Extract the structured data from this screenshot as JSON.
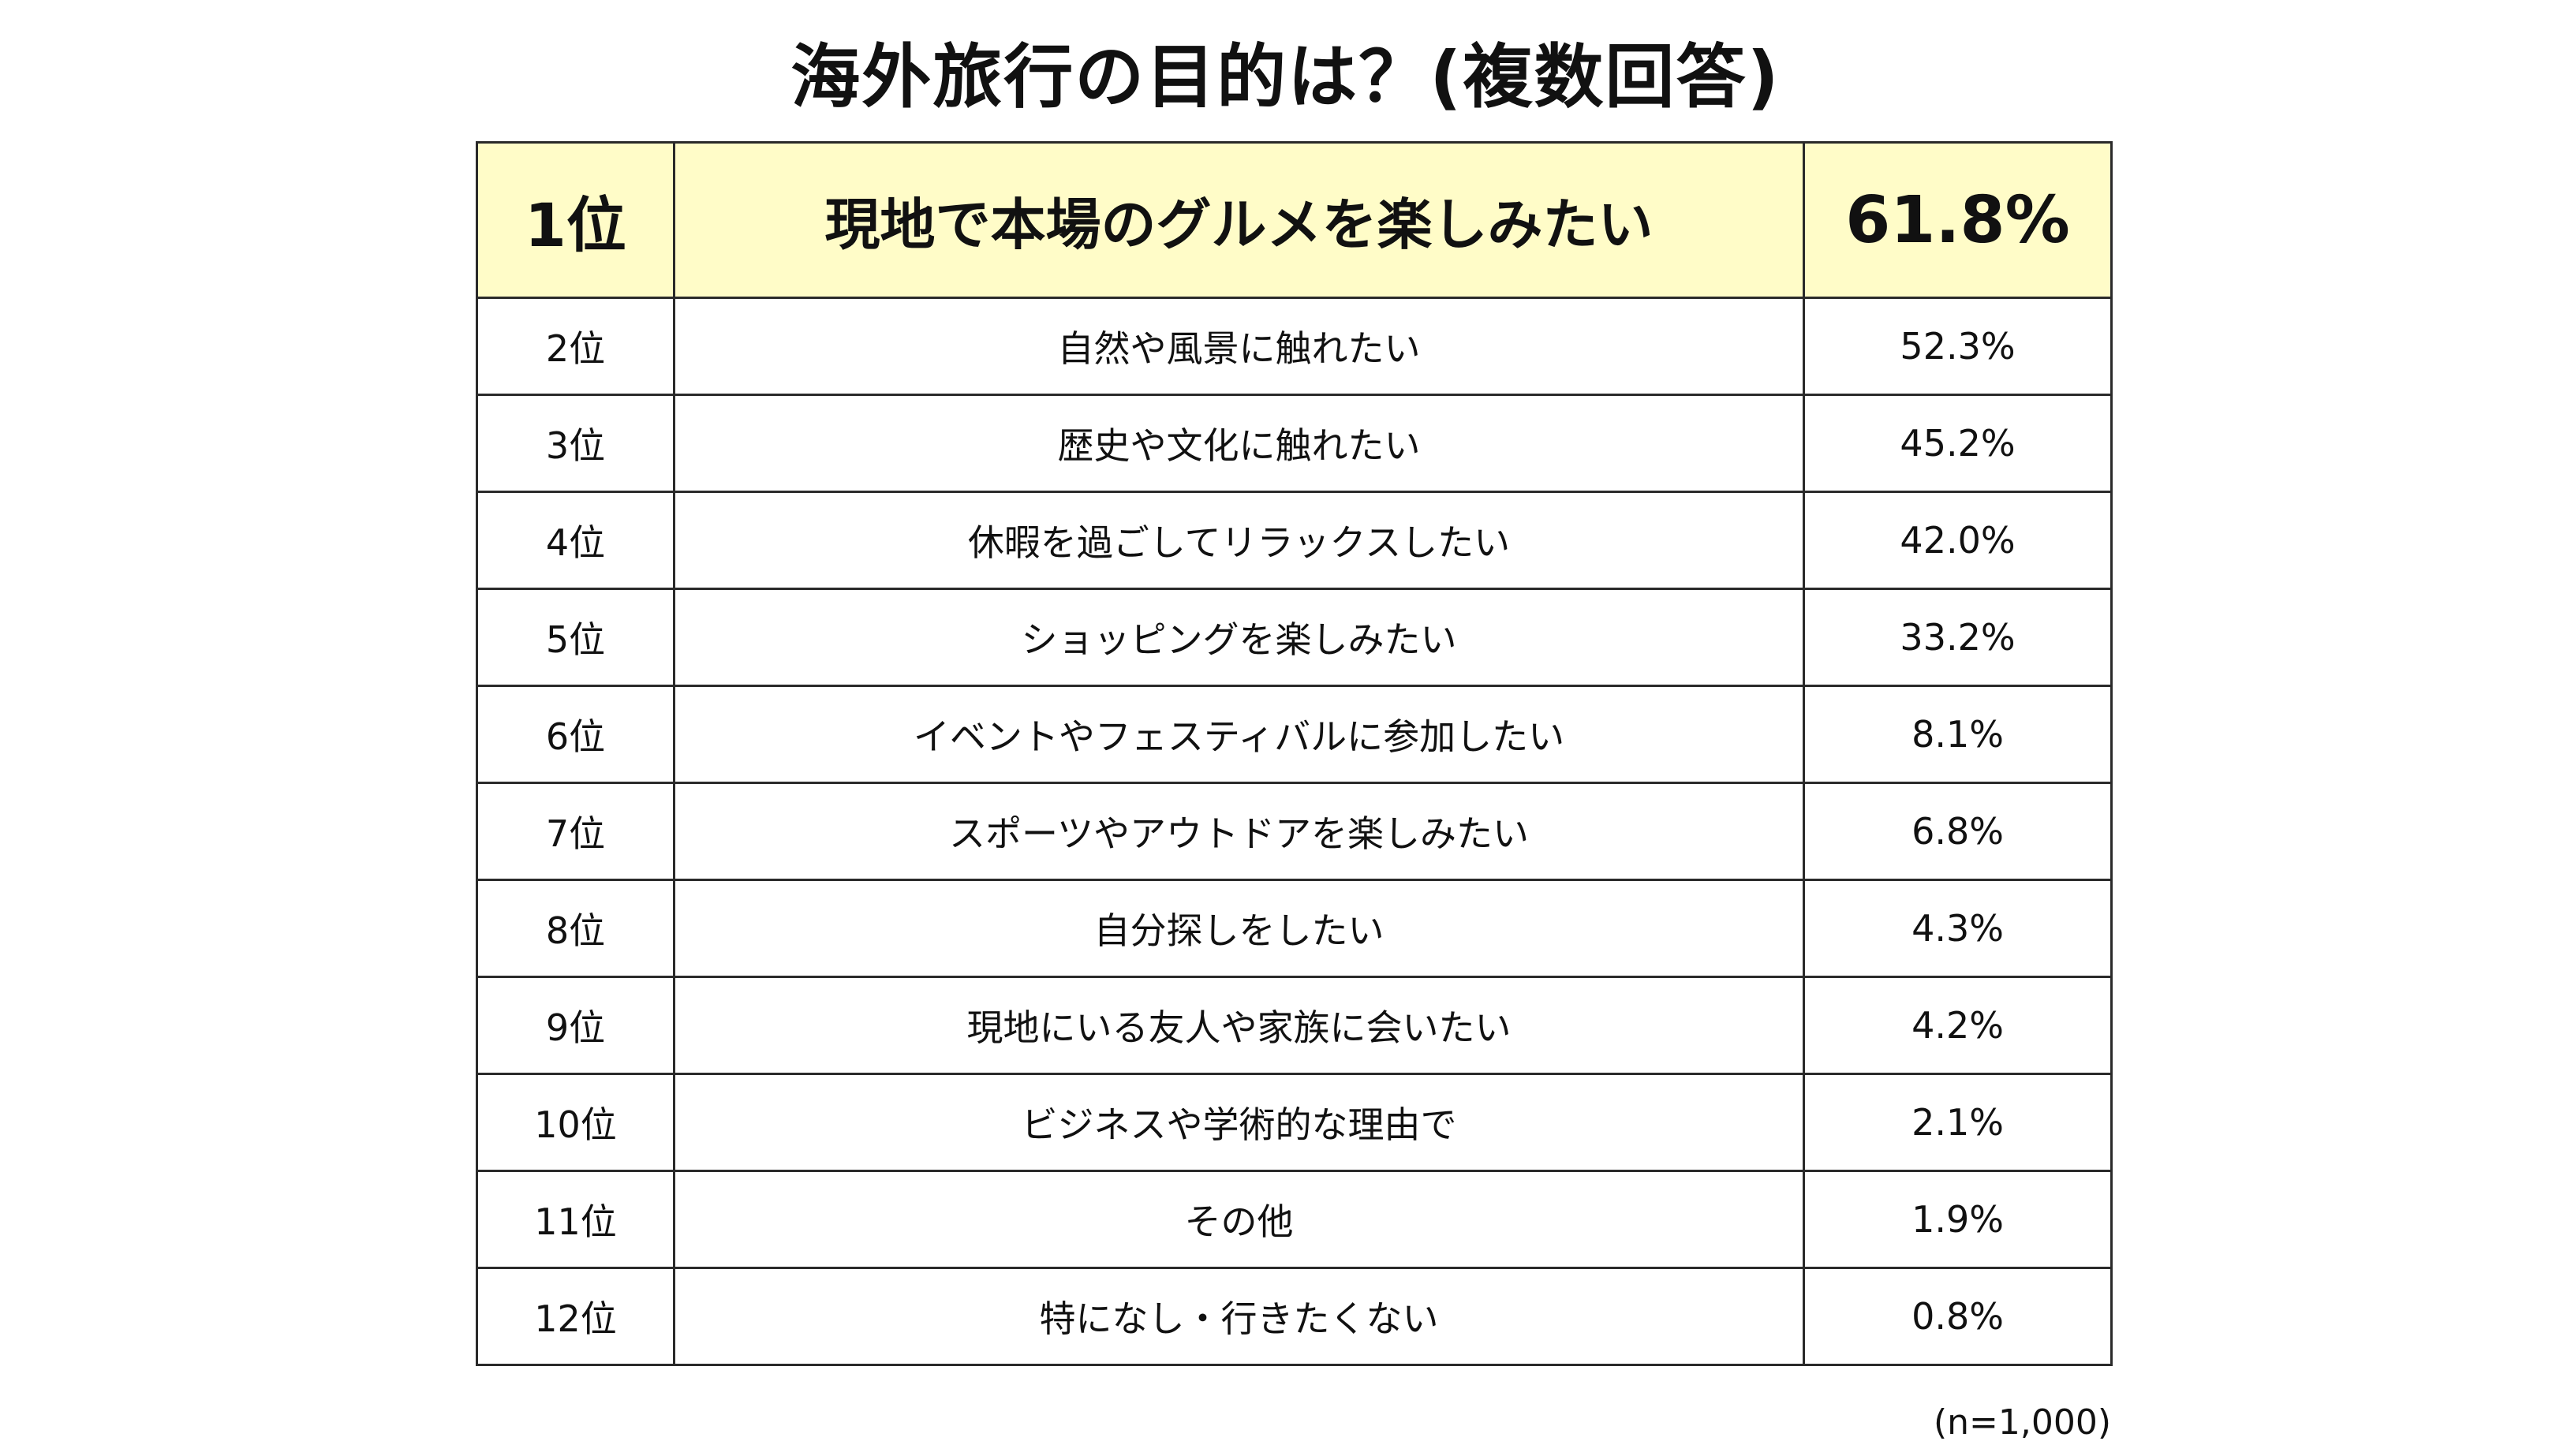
{
  "title": "海外旅行の目的は？(複数回答)",
  "chart_data": {
    "type": "table",
    "title": "海外旅行の目的は？(複数回答)",
    "rows": [
      {
        "rank": "1位",
        "item": "現地で本場のグルメを楽しみたい",
        "percent": "61.8%",
        "value": 61.8
      },
      {
        "rank": "2位",
        "item": "自然や風景に触れたい",
        "percent": "52.3%",
        "value": 52.3
      },
      {
        "rank": "3位",
        "item": "歴史や文化に触れたい",
        "percent": "45.2%",
        "value": 45.2
      },
      {
        "rank": "4位",
        "item": "休暇を過ごしてリラックスしたい",
        "percent": "42.0%",
        "value": 42.0
      },
      {
        "rank": "5位",
        "item": "ショッピングを楽しみたい",
        "percent": "33.2%",
        "value": 33.2
      },
      {
        "rank": "6位",
        "item": "イベントやフェスティバルに参加したい",
        "percent": "8.1%",
        "value": 8.1
      },
      {
        "rank": "7位",
        "item": "スポーツやアウトドアを楽しみたい",
        "percent": "6.8%",
        "value": 6.8
      },
      {
        "rank": "8位",
        "item": "自分探しをしたい",
        "percent": "4.3%",
        "value": 4.3
      },
      {
        "rank": "9位",
        "item": "現地にいる友人や家族に会いたい",
        "percent": "4.2%",
        "value": 4.2
      },
      {
        "rank": "10位",
        "item": "ビジネスや学術的な理由で",
        "percent": "2.1%",
        "value": 2.1
      },
      {
        "rank": "11位",
        "item": "その他",
        "percent": "1.9%",
        "value": 1.9
      },
      {
        "rank": "12位",
        "item": "特になし・行きたくない",
        "percent": "0.8%",
        "value": 0.8
      }
    ],
    "note": "(n=1,000)"
  },
  "colors": {
    "top_row_background": "#fffcc8",
    "border": "#2a2a2a",
    "text": "#111111"
  }
}
